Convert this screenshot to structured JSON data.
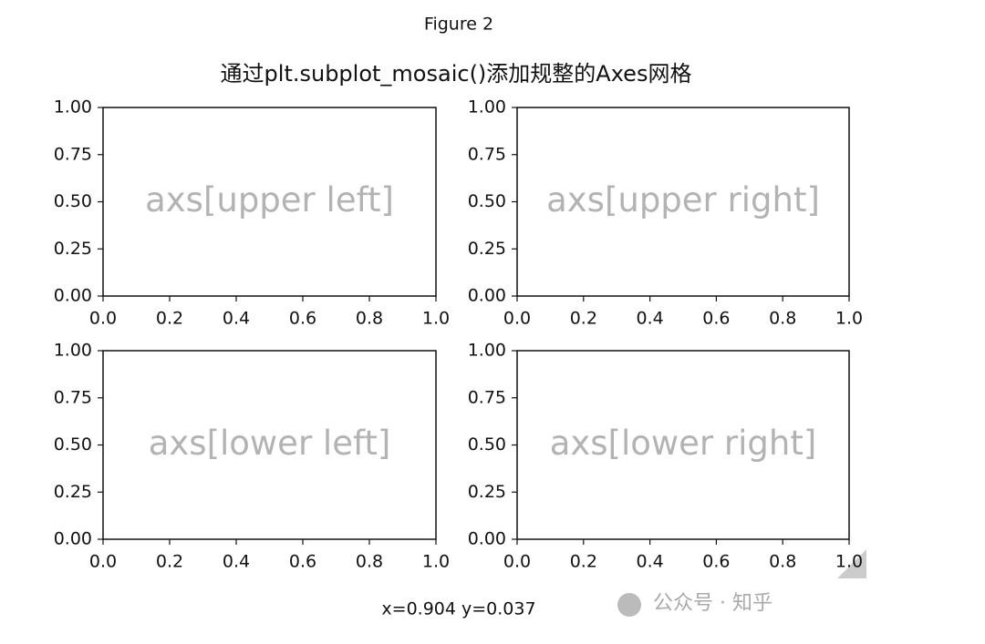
{
  "window_title": "Figure 2",
  "suptitle": "通过plt.subplot_mosaic()添加规整的Axes网格",
  "status": "x=0.904 y=0.037",
  "watermark": "公众号 · 知乎",
  "chart_data": [
    {
      "type": "axes",
      "annotation": "axs[upper left]",
      "xlim": [
        0,
        1
      ],
      "ylim": [
        0,
        1
      ],
      "xticks": [
        {
          "value": 0,
          "label": "0.0"
        },
        0.2,
        0.4,
        0.6,
        0.8,
        {
          "value": 1,
          "label": "1.0"
        }
      ],
      "yticks": [
        {
          "value": 0,
          "label": "0.00"
        },
        0.25,
        {
          "value": 0.5,
          "label": "0.50"
        },
        0.75,
        {
          "value": 1,
          "label": "1.00"
        }
      ]
    },
    {
      "type": "axes",
      "annotation": "axs[upper right]",
      "xlim": [
        0,
        1
      ],
      "ylim": [
        0,
        1
      ],
      "xticks": [
        {
          "value": 0,
          "label": "0.0"
        },
        0.2,
        0.4,
        0.6,
        0.8,
        {
          "value": 1,
          "label": "1.0"
        }
      ],
      "yticks": [
        {
          "value": 0,
          "label": "0.00"
        },
        0.25,
        {
          "value": 0.5,
          "label": "0.50"
        },
        0.75,
        {
          "value": 1,
          "label": "1.00"
        }
      ]
    },
    {
      "type": "axes",
      "annotation": "axs[lower left]",
      "xlim": [
        0,
        1
      ],
      "ylim": [
        0,
        1
      ],
      "xticks": [
        {
          "value": 0,
          "label": "0.0"
        },
        0.2,
        0.4,
        0.6,
        0.8,
        {
          "value": 1,
          "label": "1.0"
        }
      ],
      "yticks": [
        {
          "value": 0,
          "label": "0.00"
        },
        0.25,
        {
          "value": 0.5,
          "label": "0.50"
        },
        0.75,
        {
          "value": 1,
          "label": "1.00"
        }
      ]
    },
    {
      "type": "axes",
      "annotation": "axs[lower right]",
      "xlim": [
        0,
        1
      ],
      "ylim": [
        0,
        1
      ],
      "xticks": [
        {
          "value": 0,
          "label": "0.0"
        },
        0.2,
        0.4,
        0.6,
        0.8,
        {
          "value": 1,
          "label": "1.0"
        }
      ],
      "yticks": [
        {
          "value": 0,
          "label": "0.00"
        },
        0.25,
        {
          "value": 0.5,
          "label": "0.50"
        },
        0.75,
        {
          "value": 1,
          "label": "1.00"
        }
      ]
    }
  ]
}
